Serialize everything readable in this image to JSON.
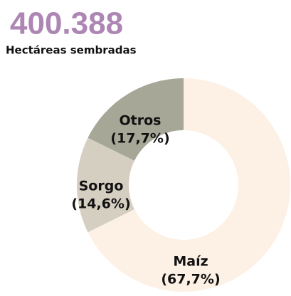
{
  "chart_data": {
    "type": "donut",
    "title": "400.388",
    "subtitle": "Hectáreas sembradas",
    "categories": [
      "Maíz",
      "Sorgo",
      "Otros"
    ],
    "values": [
      67.7,
      14.6,
      17.7
    ],
    "value_labels": [
      "(67,7%)",
      "(14,6%)",
      "(17,7%)"
    ],
    "colors": [
      "#fdf0e5",
      "#d5cfc1",
      "#a6a797"
    ]
  }
}
